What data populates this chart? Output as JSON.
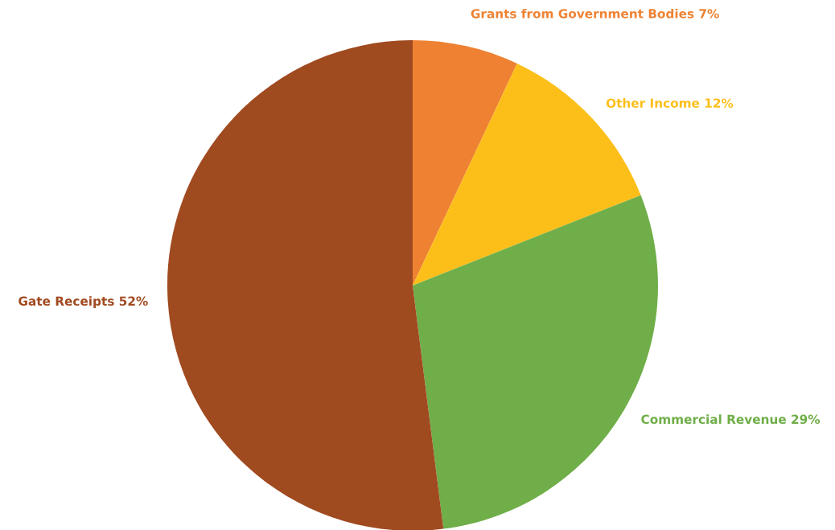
{
  "chart_data": {
    "type": "pie",
    "categories": [
      "Grants from Government Bodies",
      "Other Income",
      "Commercial Revenue",
      "Gate Receipts"
    ],
    "values": [
      7,
      12,
      29,
      52
    ],
    "colors": [
      "#ee8232",
      "#fcbf1a",
      "#6fae48",
      "#a04a20"
    ],
    "value_labels": [
      "7%",
      "12%",
      "29%",
      "52%"
    ]
  }
}
